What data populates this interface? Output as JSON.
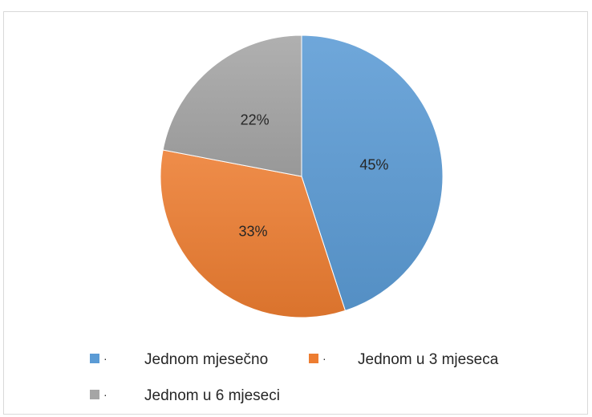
{
  "chart_data": {
    "type": "pie",
    "title": "",
    "categories": [
      "Jednom mjesečno",
      "Jednom u 3 mjeseca",
      "Jednom u 6 mjeseci"
    ],
    "values": [
      45,
      33,
      22
    ],
    "labels": [
      "45%",
      "33%",
      "22%"
    ],
    "colors": [
      "#5b9bd5",
      "#ed7d31",
      "#a5a5a5"
    ],
    "legend_position": "bottom",
    "legend_marker": "·"
  }
}
